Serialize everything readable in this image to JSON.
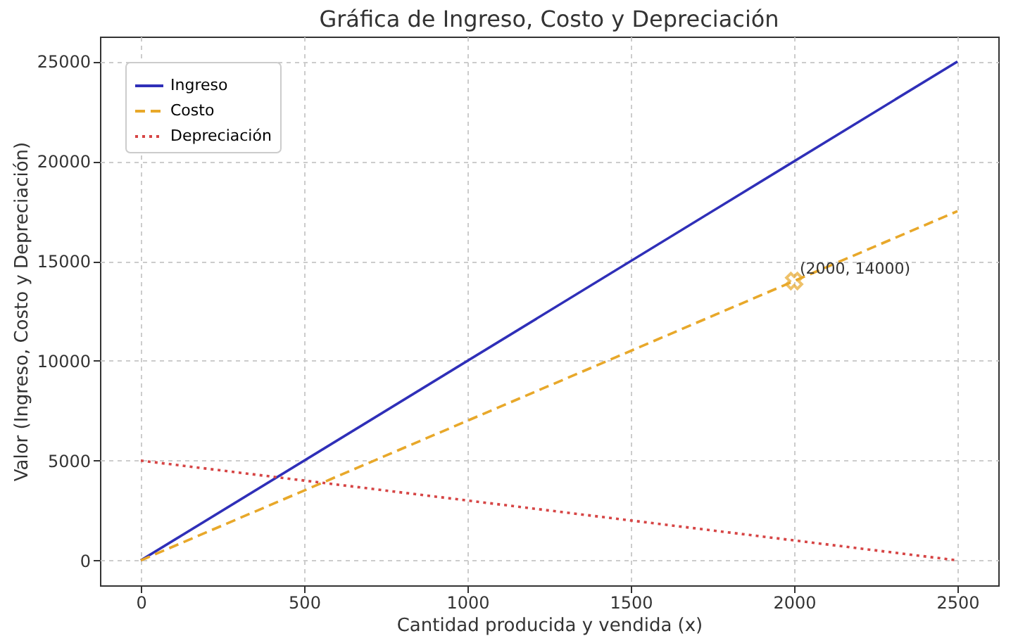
{
  "chart_data": {
    "type": "line",
    "title": "Gráfica de Ingreso, Costo y Depreciación",
    "xlabel": "Cantidad producida y vendida (x)",
    "ylabel": "Valor (Ingreso, Costo y Depreciación)",
    "x": [
      0,
      2500
    ],
    "series": [
      {
        "name": "Ingreso",
        "color": "#2f2fb8",
        "values": [
          0,
          25000
        ],
        "line_style": "solid"
      },
      {
        "name": "Costo",
        "color": "#e8a82a",
        "values": [
          0,
          17500
        ],
        "line_style": "dashed"
      },
      {
        "name": "Depreciación",
        "color": "#d64545",
        "values": [
          5000,
          0
        ],
        "line_style": "dotted"
      },
      {
        "type": "scatter",
        "color": "#e8a82a",
        "x": [
          2000
        ],
        "values": [
          14000
        ],
        "marker": "cross"
      }
    ],
    "annotations": [
      {
        "text": "(2000, 14000)",
        "x": 2000,
        "y": 14000
      }
    ],
    "xlim": [
      -125,
      2625
    ],
    "ylim": [
      -1250,
      26250
    ],
    "xticks": [
      0,
      500,
      1000,
      1500,
      2000,
      2500
    ],
    "yticks": [
      0,
      5000,
      10000,
      15000,
      20000,
      25000
    ],
    "grid": true,
    "legend": "top left"
  }
}
